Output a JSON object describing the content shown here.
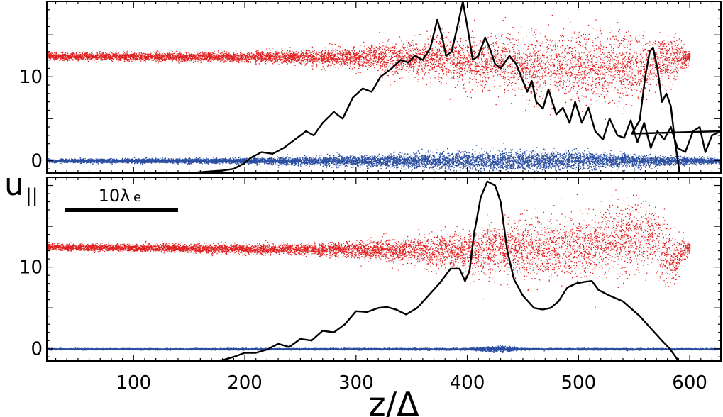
{
  "chart_data": {
    "type": "scatter",
    "xlabel": "z/Δ",
    "ylabel": "u",
    "ylabel_subscript": "||",
    "x_range": [
      22,
      628
    ],
    "x_ticks": [
      100,
      200,
      300,
      400,
      500,
      600
    ],
    "colors": {
      "red_series": "#e02020",
      "blue_series": "#2a4ea0",
      "line": "#000000"
    },
    "panels": [
      {
        "id": "top",
        "y_range": [
          -1.5,
          19
        ],
        "y_ticks": [
          0,
          10
        ],
        "scale_bar": null,
        "red": {
          "x_start": 22,
          "x_end": 600,
          "base": 12.5,
          "spread_profile": [
            [
              22,
              0.35
            ],
            [
              200,
              0.45
            ],
            [
              300,
              1.0
            ],
            [
              400,
              2.5
            ],
            [
              500,
              3.5
            ],
            [
              560,
              3.0
            ],
            [
              590,
              2.0
            ],
            [
              600,
              0.4
            ]
          ],
          "center_profile": [
            [
              22,
              12.5
            ],
            [
              350,
              12.3
            ],
            [
              450,
              11.5
            ],
            [
              550,
              11.0
            ],
            [
              600,
              12.5
            ]
          ]
        },
        "blue": {
          "x_start": 22,
          "x_end": 628,
          "base": 0.0,
          "spread_profile": [
            [
              22,
              0.2
            ],
            [
              200,
              0.3
            ],
            [
              300,
              0.6
            ],
            [
              450,
              1.2
            ],
            [
              520,
              0.9
            ],
            [
              580,
              0.5
            ],
            [
              628,
              0.3
            ]
          ]
        },
        "line": [
          [
            22,
            -1.5
          ],
          [
            150,
            -1.5
          ],
          [
            170,
            -1.3
          ],
          [
            180,
            -1.2
          ],
          [
            190,
            -1.0
          ],
          [
            200,
            -0.3
          ],
          [
            205,
            0.3
          ],
          [
            215,
            1.0
          ],
          [
            225,
            0.8
          ],
          [
            235,
            1.5
          ],
          [
            245,
            2.5
          ],
          [
            255,
            3.5
          ],
          [
            262,
            3.0
          ],
          [
            270,
            4.5
          ],
          [
            280,
            5.8
          ],
          [
            288,
            5.0
          ],
          [
            297,
            7.5
          ],
          [
            306,
            8.6
          ],
          [
            314,
            8.2
          ],
          [
            322,
            10.0
          ],
          [
            332,
            11.0
          ],
          [
            340,
            12.0
          ],
          [
            347,
            11.7
          ],
          [
            353,
            12.5
          ],
          [
            360,
            12.0
          ],
          [
            367,
            13.5
          ],
          [
            373,
            16.8
          ],
          [
            377,
            15.0
          ],
          [
            381,
            12.5
          ],
          [
            386,
            13.0
          ],
          [
            392,
            16.5
          ],
          [
            396,
            19.0
          ],
          [
            400,
            16.0
          ],
          [
            405,
            12.0
          ],
          [
            410,
            12.5
          ],
          [
            416,
            14.7
          ],
          [
            420,
            13.5
          ],
          [
            425,
            11.5
          ],
          [
            430,
            11.0
          ],
          [
            438,
            12.5
          ],
          [
            444,
            11.5
          ],
          [
            450,
            9.5
          ],
          [
            454,
            8.2
          ],
          [
            458,
            9.5
          ],
          [
            462,
            7.0
          ],
          [
            468,
            6.2
          ],
          [
            473,
            8.5
          ],
          [
            480,
            5.5
          ],
          [
            486,
            6.3
          ],
          [
            492,
            4.5
          ],
          [
            497,
            7.0
          ],
          [
            503,
            4.5
          ],
          [
            509,
            6.3
          ],
          [
            515,
            3.5
          ],
          [
            522,
            2.5
          ],
          [
            528,
            5.0
          ],
          [
            535,
            3.0
          ],
          [
            541,
            2.7
          ],
          [
            547,
            4.8
          ],
          [
            553,
            2.2
          ],
          [
            559,
            4.5
          ],
          [
            565,
            1.5
          ],
          [
            571,
            3.5
          ],
          [
            577,
            2.5
          ],
          [
            583,
            4.0
          ],
          [
            589,
            1.5
          ],
          [
            596,
            1.0
          ],
          [
            603,
            3.5
          ],
          [
            609,
            4.0
          ],
          [
            614,
            1.0
          ],
          [
            620,
            3.0
          ],
          [
            628,
            3.5
          ],
          [
            548,
            3.2
          ],
          [
            555,
            4.8
          ],
          [
            560,
            10.0
          ],
          [
            564,
            13.0
          ],
          [
            567,
            13.5
          ],
          [
            571,
            11.0
          ],
          [
            575,
            7.0
          ],
          [
            579,
            8.0
          ],
          [
            583,
            6.5
          ],
          [
            587,
            2.0
          ],
          [
            591,
            -1.5
          ],
          [
            628,
            -1.5
          ]
        ]
      },
      {
        "id": "bottom",
        "y_range": [
          -1.5,
          21
        ],
        "y_ticks": [
          0,
          10
        ],
        "scale_bar": {
          "label": "10λ",
          "subscript": "e",
          "x0": 38,
          "x1": 140,
          "y": 17
        },
        "red": {
          "x_start": 22,
          "x_end": 600,
          "base": 12.5,
          "spread_profile": [
            [
              22,
              0.3
            ],
            [
              250,
              0.5
            ],
            [
              350,
              1.2
            ],
            [
              420,
              2.5
            ],
            [
              480,
              3.0
            ],
            [
              540,
              3.5
            ],
            [
              580,
              3.0
            ],
            [
              600,
              0.4
            ]
          ],
          "center_profile": [
            [
              22,
              12.5
            ],
            [
              400,
              12.0
            ],
            [
              500,
              12.5
            ],
            [
              560,
              14.0
            ],
            [
              585,
              11.0
            ],
            [
              600,
              12.5
            ]
          ]
        },
        "blue": {
          "x_start": 22,
          "x_end": 628,
          "base": 0.0,
          "spread_profile": [
            [
              22,
              0.08
            ],
            [
              400,
              0.1
            ],
            [
              425,
              0.35
            ],
            [
              450,
              0.1
            ],
            [
              628,
              0.08
            ]
          ]
        },
        "line": [
          [
            22,
            -1.5
          ],
          [
            170,
            -1.5
          ],
          [
            180,
            -1.4
          ],
          [
            190,
            -1.0
          ],
          [
            200,
            -0.5
          ],
          [
            210,
            -0.5
          ],
          [
            220,
            -0.1
          ],
          [
            230,
            0.6
          ],
          [
            240,
            0.2
          ],
          [
            250,
            1.2
          ],
          [
            260,
            1.0
          ],
          [
            270,
            2.2
          ],
          [
            280,
            2.0
          ],
          [
            290,
            3.0
          ],
          [
            300,
            4.6
          ],
          [
            310,
            4.5
          ],
          [
            320,
            5.0
          ],
          [
            328,
            5.1
          ],
          [
            336,
            4.8
          ],
          [
            345,
            4.2
          ],
          [
            355,
            5.0
          ],
          [
            365,
            6.5
          ],
          [
            375,
            8.0
          ],
          [
            385,
            9.8
          ],
          [
            393,
            9.8
          ],
          [
            398,
            8.3
          ],
          [
            402,
            9.5
          ],
          [
            406,
            14.0
          ],
          [
            412,
            18.5
          ],
          [
            418,
            20.5
          ],
          [
            425,
            20.0
          ],
          [
            430,
            18.0
          ],
          [
            436,
            12.0
          ],
          [
            442,
            8.5
          ],
          [
            450,
            6.5
          ],
          [
            460,
            5.0
          ],
          [
            468,
            4.8
          ],
          [
            475,
            5.0
          ],
          [
            482,
            5.8
          ],
          [
            490,
            7.5
          ],
          [
            498,
            8.0
          ],
          [
            506,
            8.2
          ],
          [
            512,
            8.3
          ],
          [
            518,
            7.2
          ],
          [
            528,
            6.5
          ],
          [
            540,
            5.8
          ],
          [
            555,
            4.0
          ],
          [
            565,
            2.5
          ],
          [
            575,
            1.0
          ],
          [
            582,
            0.0
          ],
          [
            590,
            -1.5
          ],
          [
            628,
            -1.5
          ]
        ]
      }
    ]
  }
}
